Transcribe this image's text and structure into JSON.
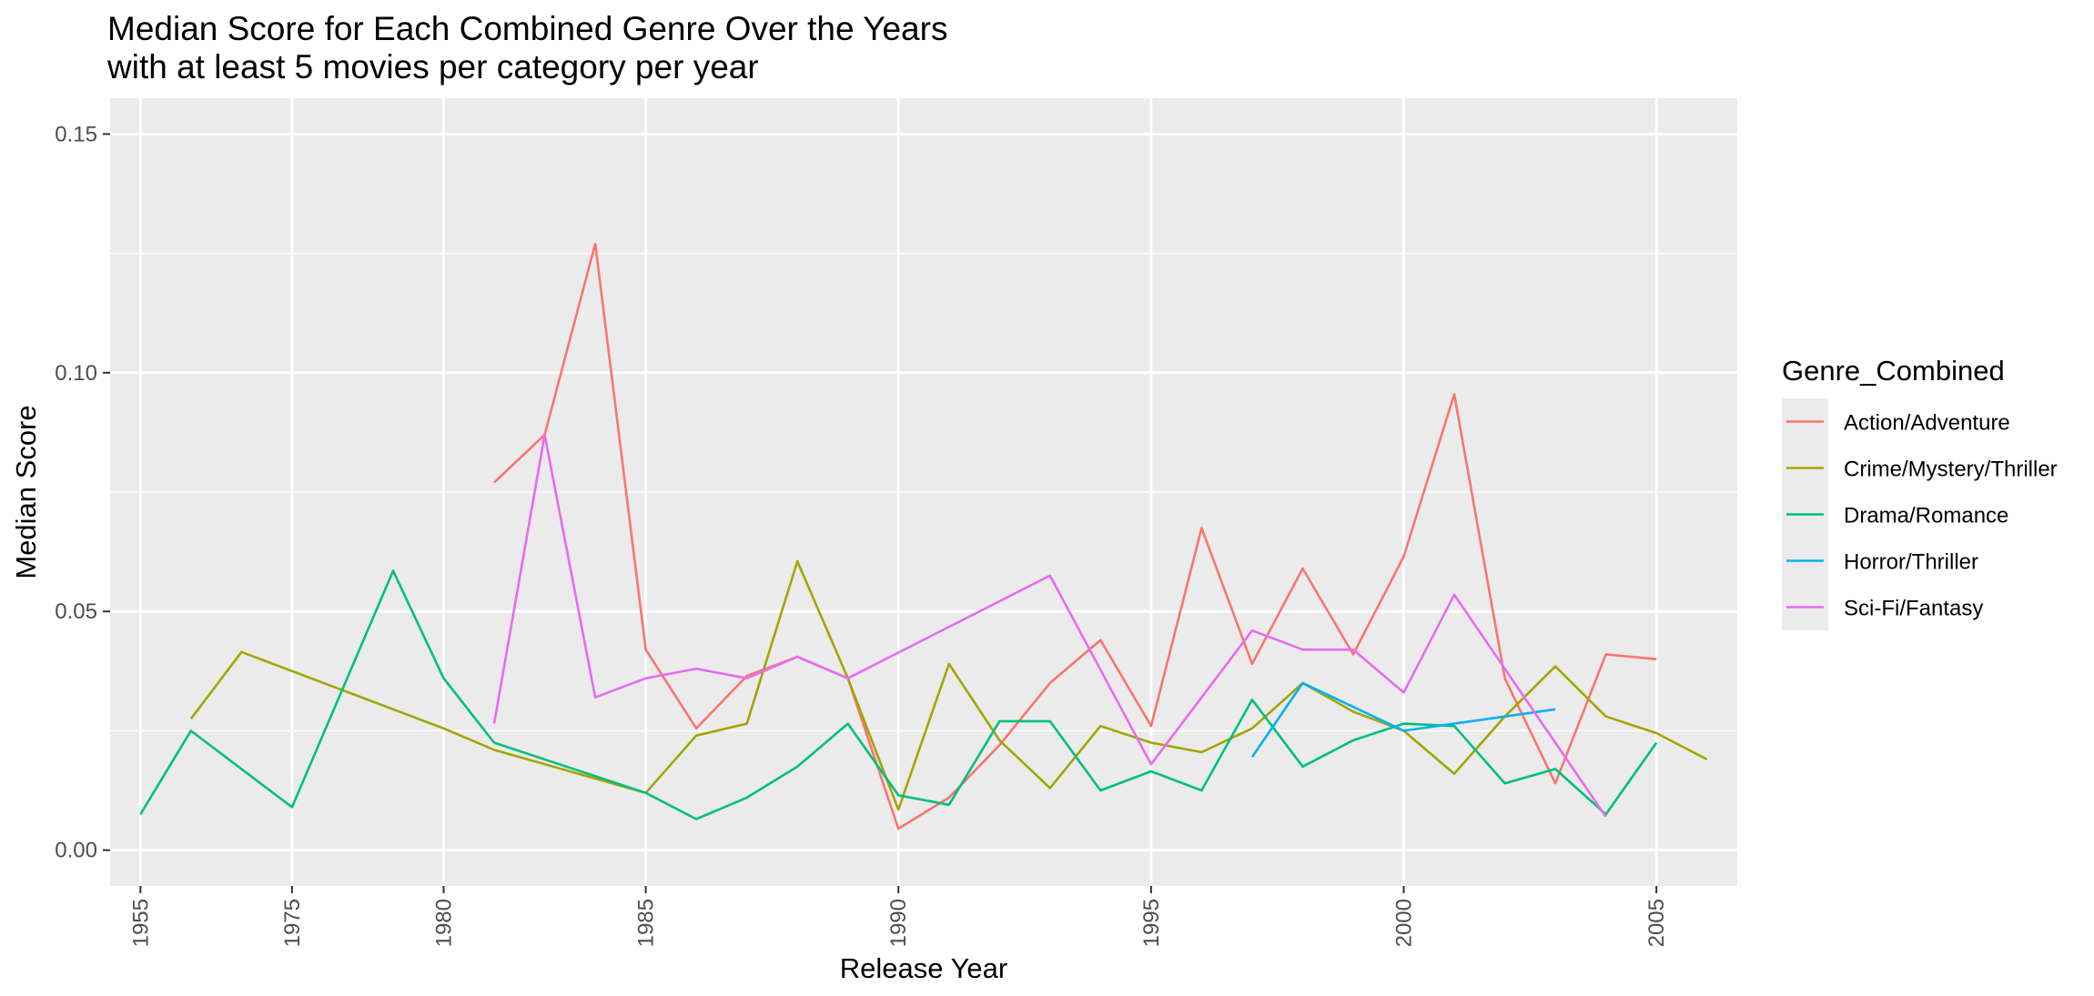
{
  "chart_data": {
    "type": "line",
    "title": "Median Score for Each Combined Genre Over the Years",
    "subtitle": "with at least 5 movies per category per year",
    "xlabel": "Release Year",
    "ylabel": "Median Score",
    "x_ticks": [
      "1955",
      "1975",
      "1980",
      "1985",
      "1990",
      "1995",
      "2000",
      "2005"
    ],
    "y_ticks": [
      "0.00",
      "0.05",
      "0.10",
      "0.15"
    ],
    "y_tick_values": [
      0,
      0.05,
      0.1,
      0.15
    ],
    "ylim": [
      -0.0075,
      0.1575
    ],
    "grid": true,
    "legend_position": "right",
    "legend_title": "Genre_Combined",
    "x_categories": [
      "1955",
      "1970",
      "1972",
      "1975",
      "1977",
      "1978",
      "1980",
      "1981",
      "1982",
      "1983",
      "1985",
      "1986",
      "1987",
      "1988",
      "1989",
      "1990",
      "1991",
      "1992",
      "1993",
      "1994",
      "1995",
      "1996",
      "1997",
      "1998",
      "1999",
      "2000",
      "2001",
      "2002",
      "2003",
      "2004",
      "2005",
      "2006"
    ],
    "series": [
      {
        "name": "Action/Adventure",
        "color": "#F8766D",
        "points": [
          [
            "1981",
            0.077
          ],
          [
            "1982",
            0.087
          ],
          [
            "1983",
            0.127
          ],
          [
            "1985",
            0.042
          ],
          [
            "1986",
            0.0255
          ],
          [
            "1987",
            0.0365
          ],
          [
            "1988",
            0.0405
          ],
          [
            "1989",
            0.036
          ],
          [
            "1990",
            0.0045
          ],
          [
            "1991",
            0.011
          ],
          [
            "1992",
            0.022
          ],
          [
            "1993",
            0.035
          ],
          [
            "1994",
            0.044
          ],
          [
            "1995",
            0.026
          ],
          [
            "1996",
            0.0675
          ],
          [
            "1997",
            0.039
          ],
          [
            "1998",
            0.059
          ],
          [
            "1999",
            0.041
          ],
          [
            "2000",
            0.0615
          ],
          [
            "2001",
            0.0955
          ],
          [
            "2002",
            0.036
          ],
          [
            "2003",
            0.014
          ],
          [
            "2004",
            0.041
          ],
          [
            "2005",
            0.04
          ]
        ]
      },
      {
        "name": "Crime/Mystery/Thriller",
        "color": "#A3A500",
        "points": [
          [
            "1970",
            0.0275
          ],
          [
            "1972",
            0.0415
          ],
          [
            "1980",
            0.0255
          ],
          [
            "1981",
            0.021
          ],
          [
            "1985",
            0.012
          ],
          [
            "1986",
            0.024
          ],
          [
            "1987",
            0.0265
          ],
          [
            "1988",
            0.0605
          ],
          [
            "1989",
            0.036
          ],
          [
            "1990",
            0.0085
          ],
          [
            "1991",
            0.039
          ],
          [
            "1992",
            0.023
          ],
          [
            "1993",
            0.013
          ],
          [
            "1994",
            0.026
          ],
          [
            "1995",
            0.0225
          ],
          [
            "1996",
            0.0205
          ],
          [
            "1997",
            0.0255
          ],
          [
            "1998",
            0.035
          ],
          [
            "1999",
            0.029
          ],
          [
            "2000",
            0.025
          ],
          [
            "2001",
            0.016
          ],
          [
            "2002",
            0.028
          ],
          [
            "2003",
            0.0385
          ],
          [
            "2004",
            0.028
          ],
          [
            "2005",
            0.0245
          ],
          [
            "2006",
            0.019
          ]
        ]
      },
      {
        "name": "Drama/Romance",
        "color": "#00BF7D",
        "points": [
          [
            "1955",
            0.0075
          ],
          [
            "1970",
            0.025
          ],
          [
            "1975",
            0.009
          ],
          [
            "1978",
            0.0585
          ],
          [
            "1980",
            0.036
          ],
          [
            "1981",
            0.0225
          ],
          [
            "1985",
            0.012
          ],
          [
            "1986",
            0.0065
          ],
          [
            "1987",
            0.011
          ],
          [
            "1988",
            0.0175
          ],
          [
            "1989",
            0.0265
          ],
          [
            "1990",
            0.0115
          ],
          [
            "1991",
            0.0095
          ],
          [
            "1992",
            0.027
          ],
          [
            "1993",
            0.027
          ],
          [
            "1994",
            0.0125
          ],
          [
            "1995",
            0.0165
          ],
          [
            "1996",
            0.0125
          ],
          [
            "1997",
            0.0315
          ],
          [
            "1998",
            0.0175
          ],
          [
            "1999",
            0.023
          ],
          [
            "2000",
            0.0265
          ],
          [
            "2001",
            0.026
          ],
          [
            "2002",
            0.014
          ],
          [
            "2003",
            0.017
          ],
          [
            "2004",
            0.0075
          ],
          [
            "2005",
            0.0225
          ]
        ]
      },
      {
        "name": "Horror/Thriller",
        "color": "#00B0F6",
        "points": [
          [
            "1997",
            0.0195
          ],
          [
            "1998",
            0.035
          ],
          [
            "2000",
            0.025
          ],
          [
            "2003",
            0.0295
          ]
        ]
      },
      {
        "name": "Sci-Fi/Fantasy",
        "color": "#E76BF3",
        "points": [
          [
            "1981",
            0.0265
          ],
          [
            "1982",
            0.087
          ],
          [
            "1983",
            0.032
          ],
          [
            "1985",
            0.036
          ],
          [
            "1986",
            0.038
          ],
          [
            "1987",
            0.036
          ],
          [
            "1988",
            0.0405
          ],
          [
            "1989",
            0.036
          ],
          [
            "1993",
            0.0575
          ],
          [
            "1995",
            0.018
          ],
          [
            "1997",
            0.046
          ],
          [
            "1998",
            0.042
          ],
          [
            "1999",
            0.042
          ],
          [
            "2000",
            0.033
          ],
          [
            "2001",
            0.0535
          ],
          [
            "2002",
            0.038
          ],
          [
            "2004",
            0.007
          ]
        ]
      }
    ]
  }
}
